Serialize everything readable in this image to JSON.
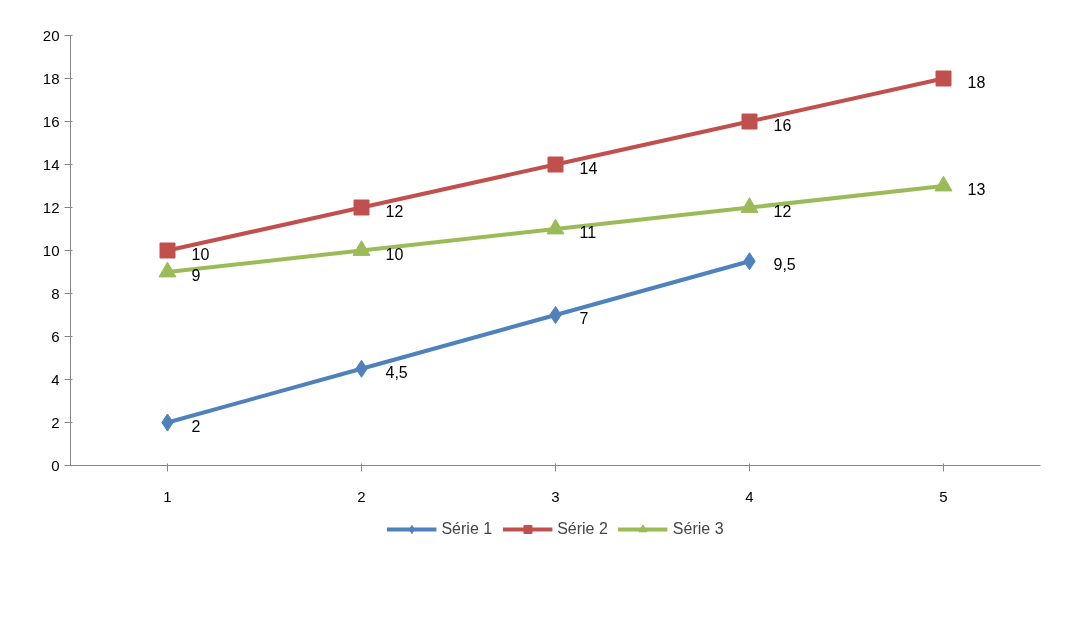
{
  "chart_data": {
    "type": "line",
    "categories": [
      "1",
      "2",
      "3",
      "4",
      "5"
    ],
    "ylim": [
      0,
      20
    ],
    "yticks": [
      0,
      2,
      4,
      6,
      8,
      10,
      12,
      14,
      16,
      18,
      20
    ],
    "grid": false,
    "legend": "bottom",
    "series": [
      {
        "name": "Série 1",
        "color": "#4f81bd",
        "marker": "diamond",
        "values": [
          2,
          4.5,
          7,
          9.5,
          null
        ],
        "value_labels": [
          "2",
          "4,5",
          "7",
          "9,5",
          null
        ]
      },
      {
        "name": "Série 2",
        "color": "#c0504d",
        "marker": "square",
        "values": [
          10,
          12,
          14,
          16,
          18
        ],
        "value_labels": [
          "10",
          "12",
          "14",
          "16",
          "18"
        ]
      },
      {
        "name": "Série 3",
        "color": "#9bbb59",
        "marker": "triangle",
        "values": [
          9,
          10,
          11,
          12,
          13
        ],
        "value_labels": [
          "9",
          "10",
          "11",
          "12",
          "13"
        ]
      }
    ]
  }
}
